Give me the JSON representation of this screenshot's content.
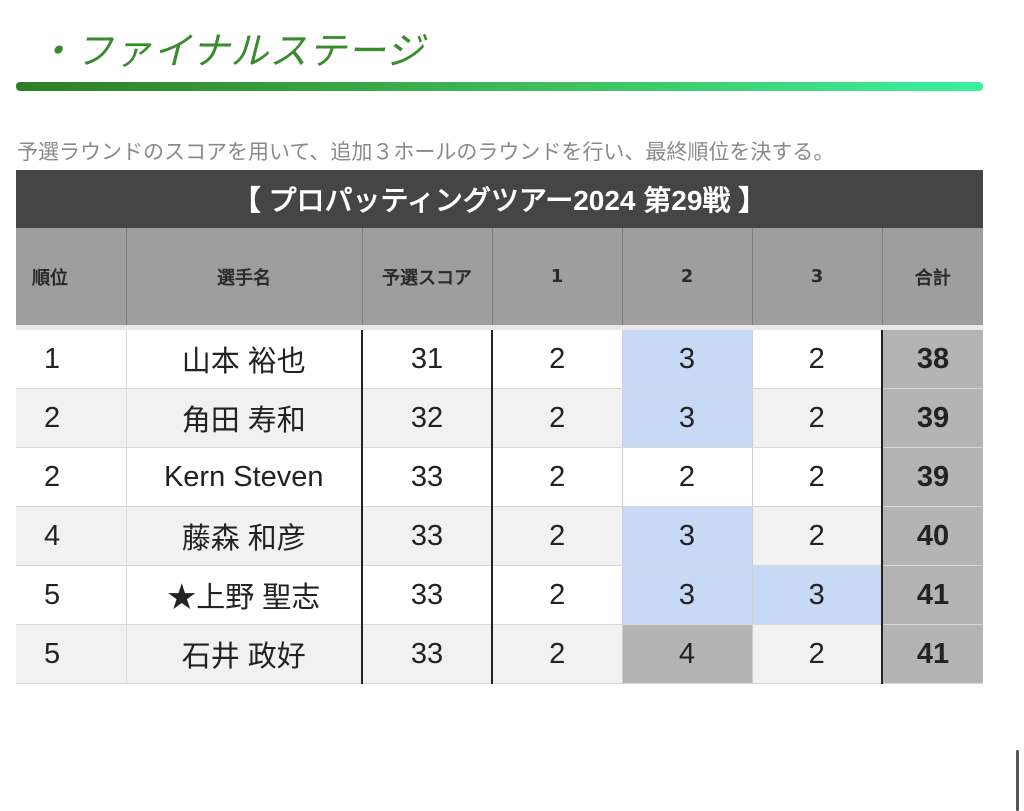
{
  "heading": "・ファイナルステージ",
  "description": "予選ラウンドのスコアを用いて、追加３ホールのラウンドを行い、最終順位を決する。",
  "table": {
    "title": "【 プロパッティングツアー2024 第29戦 】",
    "headers": {
      "rank": "順位",
      "player": "選手名",
      "qualifying": "予選スコア",
      "hole1": "1",
      "hole2": "2",
      "hole3": "3",
      "total": "合計"
    },
    "rows": [
      {
        "rank": "1",
        "player": "山本 裕也",
        "qualifying": "31",
        "hole1": "2",
        "hole2": "3",
        "hole3": "2",
        "total": "38"
      },
      {
        "rank": "2",
        "player": "角田 寿和",
        "qualifying": "32",
        "hole1": "2",
        "hole2": "3",
        "hole3": "2",
        "total": "39"
      },
      {
        "rank": "2",
        "player": "Kern Steven",
        "qualifying": "33",
        "hole1": "2",
        "hole2": "2",
        "hole3": "2",
        "total": "39"
      },
      {
        "rank": "4",
        "player": "藤森 和彦",
        "qualifying": "33",
        "hole1": "2",
        "hole2": "3",
        "hole3": "2",
        "total": "40"
      },
      {
        "rank": "5",
        "player": "★上野 聖志",
        "qualifying": "33",
        "hole1": "2",
        "hole2": "3",
        "hole3": "3",
        "total": "41"
      },
      {
        "rank": "5",
        "player": "石井 政好",
        "qualifying": "33",
        "hole1": "2",
        "hole2": "4",
        "hole3": "2",
        "total": "41"
      }
    ]
  },
  "colors": {
    "heading_green": "#3a8a2e",
    "over_par_blue": "#c8d9f5",
    "double_gray": "#b4b4b4"
  }
}
